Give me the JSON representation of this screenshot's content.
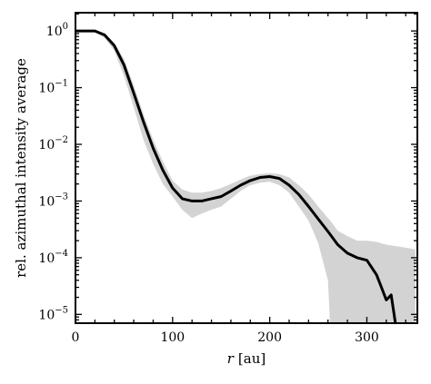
{
  "chart_data": {
    "type": "line",
    "xlabel_var": "r",
    "xlabel_unit": "[au]",
    "ylabel": "rel. azimuthal intensity average",
    "xlim": [
      0,
      352
    ],
    "ylim": [
      7e-06,
      2.1
    ],
    "yscale": "log",
    "xticks": [
      0,
      100,
      200,
      300
    ],
    "yticks": [
      {
        "value": 1,
        "base": "10",
        "exp": "0"
      },
      {
        "value": 0.1,
        "base": "10",
        "exp": "−1"
      },
      {
        "value": 0.01,
        "base": "10",
        "exp": "−2"
      },
      {
        "value": 0.001,
        "base": "10",
        "exp": "−3"
      },
      {
        "value": 0.0001,
        "base": "10",
        "exp": "−4"
      },
      {
        "value": 1e-05,
        "base": "10",
        "exp": "−5"
      }
    ],
    "line_color": "#000000",
    "band_color": "#d3d3d3",
    "series": [
      {
        "x": [
          0,
          10,
          20,
          30,
          40,
          50,
          60,
          70,
          80,
          90,
          100,
          110,
          120,
          130,
          140,
          150,
          160,
          170,
          180,
          190,
          200,
          210,
          220,
          230,
          240,
          250,
          260,
          270,
          280,
          290,
          300,
          310,
          315,
          320,
          325,
          330
        ],
        "y": [
          1.0,
          1.0,
          1.0,
          0.85,
          0.55,
          0.25,
          0.08,
          0.025,
          0.0085,
          0.0035,
          0.0017,
          0.0011,
          0.001,
          0.001,
          0.0011,
          0.0012,
          0.0015,
          0.0019,
          0.0023,
          0.0026,
          0.0027,
          0.0025,
          0.0019,
          0.0013,
          0.0008,
          0.00048,
          0.00029,
          0.00017,
          0.00012,
          0.0001,
          9e-05,
          5e-05,
          3e-05,
          1.8e-05,
          2.2e-05,
          6e-06
        ]
      }
    ],
    "band": {
      "x": [
        0,
        10,
        20,
        30,
        40,
        50,
        60,
        70,
        80,
        90,
        100,
        110,
        120,
        130,
        140,
        150,
        160,
        170,
        180,
        190,
        200,
        210,
        220,
        230,
        240,
        250,
        260,
        262,
        270,
        280,
        290,
        300,
        310,
        320,
        330,
        340,
        350
      ],
      "lower": [
        1.0,
        1.0,
        0.95,
        0.75,
        0.45,
        0.16,
        0.045,
        0.012,
        0.0045,
        0.002,
        0.0012,
        0.0007,
        0.0005,
        0.0006,
        0.0007,
        0.0008,
        0.0011,
        0.0015,
        0.0019,
        0.0021,
        0.0022,
        0.0019,
        0.0014,
        0.0008,
        0.00045,
        0.00018,
        4e-05,
        7e-06,
        7e-06,
        7e-06,
        7e-06,
        7e-06,
        7e-06,
        7e-06,
        7e-06,
        7e-06,
        7e-06
      ],
      "upper": [
        1.0,
        1.0,
        1.0,
        0.9,
        0.62,
        0.32,
        0.11,
        0.034,
        0.012,
        0.005,
        0.0023,
        0.0016,
        0.0014,
        0.0014,
        0.0015,
        0.0017,
        0.002,
        0.0024,
        0.0028,
        0.003,
        0.0031,
        0.003,
        0.0026,
        0.0019,
        0.0013,
        0.0008,
        0.0005,
        0.00046,
        0.0003,
        0.00024,
        0.0002,
        0.0002,
        0.00019,
        0.00017,
        0.00016,
        0.00015,
        0.00014
      ]
    }
  }
}
